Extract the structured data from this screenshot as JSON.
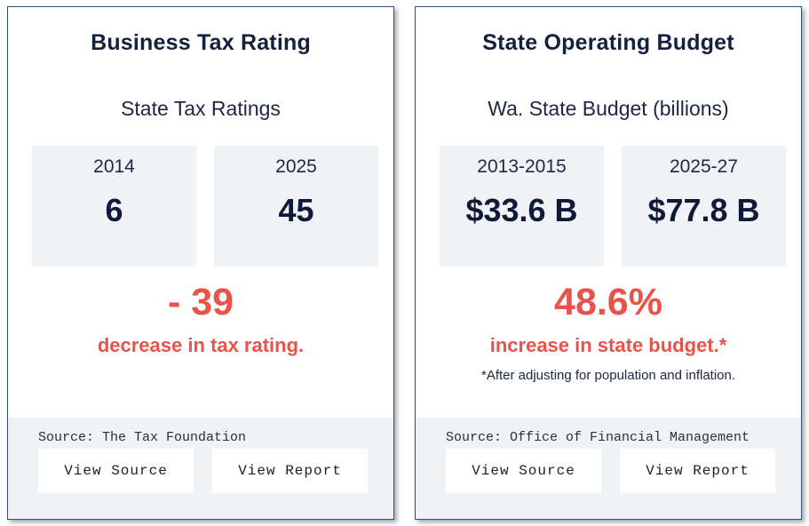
{
  "cards": [
    {
      "title": "Business Tax Rating",
      "subtitle": "State Tax Ratings",
      "stats": [
        {
          "period": "2014",
          "value": "6"
        },
        {
          "period": "2025",
          "value": "45"
        }
      ],
      "change_value": "- 39",
      "change_desc": "decrease in tax rating.",
      "footnote": "",
      "source": "Source: The Tax Foundation",
      "view_source_label": "View Source",
      "view_report_label": "View Report"
    },
    {
      "title": "State Operating Budget",
      "subtitle": "Wa. State Budget (billions)",
      "stats": [
        {
          "period": "2013-2015",
          "value": "$33.6 B"
        },
        {
          "period": "2025-27",
          "value": "$77.8 B"
        }
      ],
      "change_value": "48.6%",
      "change_desc": "increase in state budget.*",
      "footnote": "*After adjusting for population and inflation.",
      "source": "Source: Office of Financial Management",
      "view_source_label": "View Source",
      "view_report_label": "View Report"
    }
  ],
  "colors": {
    "title": "#14213d",
    "accent_red": "#e8534a",
    "box_bg": "#f0f3f6",
    "card_border": "#2d4f7c"
  }
}
